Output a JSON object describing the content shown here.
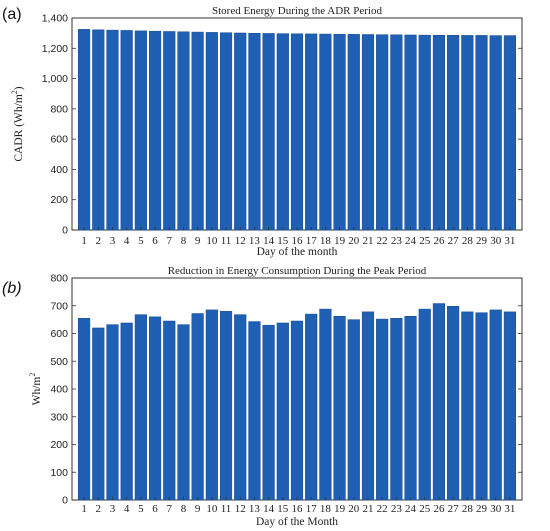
{
  "chart_data": [
    {
      "panel_label": "(a)",
      "type": "bar",
      "title": "Stored Energy During the ADR Period",
      "xlabel": "Day of the month",
      "ylabel": "CADR (Wh/m",
      "ylabel_sup": "2",
      "ylabel_close": ")",
      "categories": [
        "1",
        "2",
        "3",
        "4",
        "5",
        "6",
        "7",
        "8",
        "9",
        "10",
        "11",
        "12",
        "13",
        "14",
        "15",
        "16",
        "17",
        "18",
        "19",
        "20",
        "21",
        "22",
        "23",
        "24",
        "25",
        "26",
        "27",
        "28",
        "29",
        "30",
        "31"
      ],
      "values": [
        1325,
        1322,
        1320,
        1318,
        1315,
        1313,
        1311,
        1309,
        1307,
        1305,
        1303,
        1301,
        1299,
        1298,
        1297,
        1296,
        1295,
        1294,
        1293,
        1292,
        1291,
        1290,
        1289,
        1288,
        1287,
        1286,
        1286,
        1285,
        1285,
        1284,
        1284
      ],
      "ylim": [
        0,
        1400
      ],
      "yticks": [
        0,
        200,
        400,
        600,
        800,
        1000,
        1200,
        1400
      ],
      "ytick_labels": [
        "0",
        "200",
        "400",
        "600",
        "800",
        "1,000",
        "1,200",
        "1,400"
      ],
      "bar_color": "#1f5fb4",
      "grid": false
    },
    {
      "panel_label": "(b)",
      "type": "bar",
      "title": "Reduction in Energy Consumption During the Peak Period",
      "xlabel": "Day of the Month",
      "ylabel": "Wh/m",
      "ylabel_sup": "2",
      "ylabel_close": "",
      "categories": [
        "1",
        "2",
        "3",
        "4",
        "5",
        "6",
        "7",
        "8",
        "9",
        "10",
        "11",
        "12",
        "13",
        "14",
        "15",
        "16",
        "17",
        "18",
        "19",
        "20",
        "21",
        "22",
        "23",
        "24",
        "25",
        "26",
        "27",
        "28",
        "29",
        "30",
        "31"
      ],
      "values": [
        655,
        620,
        632,
        638,
        668,
        660,
        645,
        632,
        672,
        685,
        680,
        668,
        643,
        630,
        638,
        645,
        670,
        688,
        662,
        650,
        678,
        652,
        655,
        662,
        688,
        708,
        698,
        678,
        675,
        685,
        678
      ],
      "ylim": [
        0,
        800
      ],
      "yticks": [
        0,
        100,
        200,
        300,
        400,
        500,
        600,
        700,
        800
      ],
      "ytick_labels": [
        "0",
        "100",
        "200",
        "300",
        "400",
        "500",
        "600",
        "700",
        "800"
      ],
      "bar_color": "#1f5fb4",
      "grid": false
    }
  ]
}
